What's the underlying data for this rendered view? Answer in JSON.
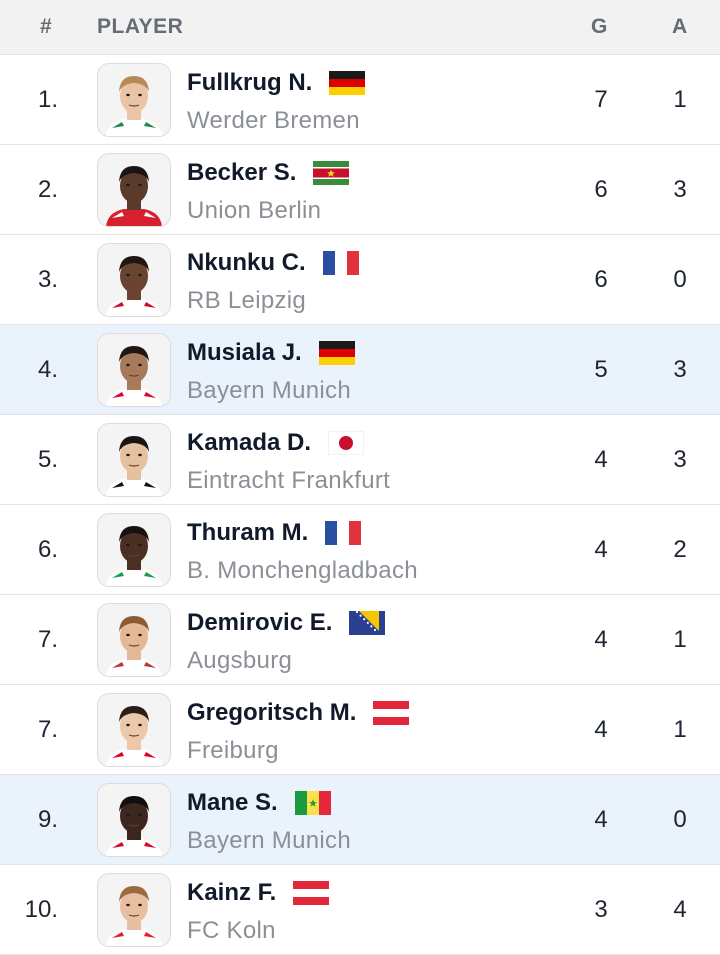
{
  "header": {
    "rank": "#",
    "player": "PLAYER",
    "goals": "G",
    "assists": "A"
  },
  "players": [
    {
      "rank": "1.",
      "name": "Fullkrug N.",
      "team": "Werder Bremen",
      "goals": "7",
      "assists": "1",
      "flag": "germany",
      "skin": "#e9c4a6",
      "hair": "#b88a57",
      "kit": "#ffffff",
      "kit_accent": "#1f8a4c",
      "highlight": false
    },
    {
      "rank": "2.",
      "name": "Becker S.",
      "team": "Union Berlin",
      "goals": "6",
      "assists": "3",
      "flag": "suriname",
      "skin": "#5a3a2a",
      "hair": "#1b1412",
      "kit": "#d6202e",
      "kit_accent": "#ffffff",
      "highlight": false
    },
    {
      "rank": "3.",
      "name": "Nkunku C.",
      "team": "RB Leipzig",
      "goals": "6",
      "assists": "0",
      "flag": "france",
      "skin": "#6b4431",
      "hair": "#201612",
      "kit": "#ffffff",
      "kit_accent": "#c8102e",
      "highlight": false
    },
    {
      "rank": "4.",
      "name": "Musiala J.",
      "team": "Bayern Munich",
      "goals": "5",
      "assists": "3",
      "flag": "germany",
      "skin": "#a87a5c",
      "hair": "#1e1714",
      "kit": "#ffffff",
      "kit_accent": "#dc052d",
      "highlight": true
    },
    {
      "rank": "5.",
      "name": "Kamada D.",
      "team": "Eintracht Frankfurt",
      "goals": "4",
      "assists": "3",
      "flag": "japan",
      "skin": "#e5c19f",
      "hair": "#1a1513",
      "kit": "#ffffff",
      "kit_accent": "#111111",
      "highlight": false
    },
    {
      "rank": "6.",
      "name": "Thuram M.",
      "team": "B. Monchengladbach",
      "goals": "4",
      "assists": "2",
      "flag": "france",
      "skin": "#4a3024",
      "hair": "#17110f",
      "kit": "#ffffff",
      "kit_accent": "#1c9c4f",
      "highlight": false
    },
    {
      "rank": "7.",
      "name": "Demirovic E.",
      "team": "Augsburg",
      "goals": "4",
      "assists": "1",
      "flag": "bosnia",
      "skin": "#e3b896",
      "hair": "#8a5b35",
      "kit": "#ffffff",
      "kit_accent": "#ba3733",
      "highlight": false
    },
    {
      "rank": "7.",
      "name": "Gregoritsch M.",
      "team": "Freiburg",
      "goals": "4",
      "assists": "1",
      "flag": "austria",
      "skin": "#ecc8ab",
      "hair": "#2a1e17",
      "kit": "#ffffff",
      "kit_accent": "#e2001a",
      "highlight": false
    },
    {
      "rank": "9.",
      "name": "Mane S.",
      "team": "Bayern Munich",
      "goals": "4",
      "assists": "0",
      "flag": "senegal",
      "skin": "#3c271f",
      "hair": "#140e0c",
      "kit": "#ffffff",
      "kit_accent": "#dc052d",
      "highlight": true
    },
    {
      "rank": "10.",
      "name": "Kainz F.",
      "team": "FC Koln",
      "goals": "3",
      "assists": "4",
      "flag": "austria",
      "skin": "#e8bfa0",
      "hair": "#9b6a3e",
      "kit": "#ffffff",
      "kit_accent": "#ed1c24",
      "highlight": false
    }
  ],
  "colors": {
    "header_bg": "#f2f2f2",
    "header_text": "#666c74",
    "highlight_row": "#eaf3fb",
    "name_text": "#111a2b",
    "team_text": "#8b9097"
  }
}
